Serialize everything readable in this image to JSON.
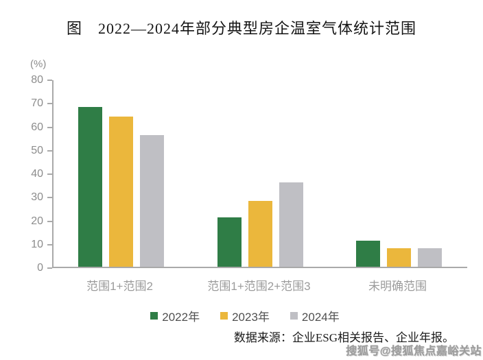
{
  "title": "图　2022—2024年部分典型房企温室气体统计范围",
  "chart_data": {
    "type": "bar",
    "title": "图 2022—2024年部分典型房企温室气体统计范围",
    "unit_label": "(%)",
    "categories": [
      "范围1+范围2",
      "范围1+范围2+范围3",
      "未明确范围"
    ],
    "series": [
      {
        "name": "2022年",
        "color": "#2F7D46",
        "values": [
          68,
          21,
          11
        ]
      },
      {
        "name": "2023年",
        "color": "#EBB73C",
        "values": [
          64,
          28,
          8
        ]
      },
      {
        "name": "2024年",
        "color": "#BFBFC4",
        "values": [
          56,
          36,
          8
        ]
      }
    ],
    "ylim": [
      0,
      80
    ],
    "ytick_step": 10,
    "grid": false,
    "legend_position": "bottom"
  },
  "source_note": "数据来源：企业ESG相关报告、企业年报。",
  "watermark": "搜狐号@搜狐焦点嘉峪关站",
  "colors": {
    "axis": "#A9A9A9",
    "tick_label": "#8C8C8C",
    "category_label": "#9B9B9B",
    "legend_text": "#4F4F4F"
  }
}
